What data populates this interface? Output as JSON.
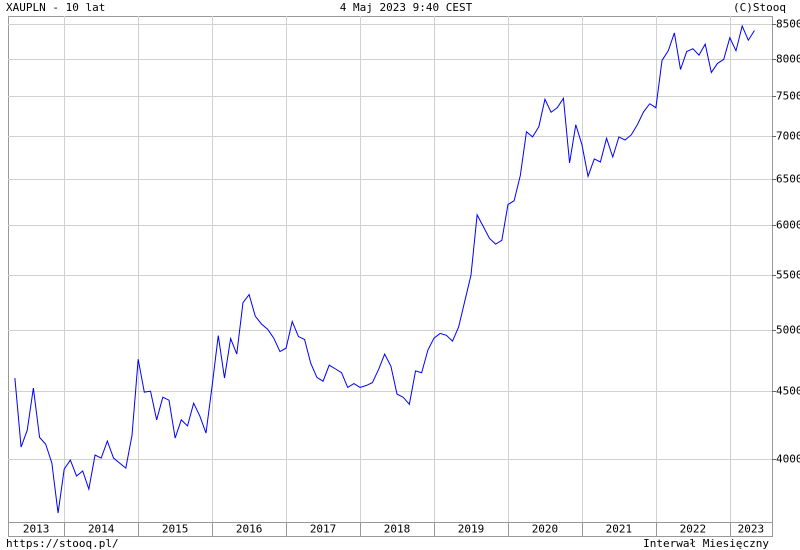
{
  "chart_data": {
    "type": "line",
    "title": "XAUPLN - 10 lat",
    "subtitle": "4 Maj 2023 9:40 CEST",
    "credit": "(C)Stooq",
    "source": "https://stooq.pl/",
    "interval": "Interwał Miesięczny",
    "color": "#0000ff",
    "log_scale": true,
    "grid": true,
    "xlim": [
      2013.24,
      2023.57
    ],
    "xticks": [
      {
        "value": 2013,
        "label": "2013"
      },
      {
        "value": 2014,
        "label": "2014"
      },
      {
        "value": 2015,
        "label": "2015"
      },
      {
        "value": 2016,
        "label": "2016"
      },
      {
        "value": 2017,
        "label": "2017"
      },
      {
        "value": 2018,
        "label": "2018"
      },
      {
        "value": 2019,
        "label": "2019"
      },
      {
        "value": 2020,
        "label": "2020"
      },
      {
        "value": 2021,
        "label": "2021"
      },
      {
        "value": 2022,
        "label": "2022"
      },
      {
        "value": 2023,
        "label": "2023"
      }
    ],
    "ylim": [
      3587,
      8614
    ],
    "yticks": [
      4000,
      4500,
      5000,
      5500,
      6000,
      6500,
      7000,
      7500,
      8000,
      8500
    ],
    "x": [
      2013.333,
      2013.417,
      2013.5,
      2013.583,
      2013.667,
      2013.75,
      2013.833,
      2013.917,
      2014.0,
      2014.083,
      2014.167,
      2014.25,
      2014.333,
      2014.417,
      2014.5,
      2014.583,
      2014.667,
      2014.75,
      2014.833,
      2014.917,
      2015.0,
      2015.083,
      2015.167,
      2015.25,
      2015.333,
      2015.417,
      2015.5,
      2015.583,
      2015.667,
      2015.75,
      2015.833,
      2015.917,
      2016.0,
      2016.083,
      2016.167,
      2016.25,
      2016.333,
      2016.417,
      2016.5,
      2016.583,
      2016.667,
      2016.75,
      2016.833,
      2016.917,
      2017.0,
      2017.083,
      2017.167,
      2017.25,
      2017.333,
      2017.417,
      2017.5,
      2017.583,
      2017.667,
      2017.75,
      2017.833,
      2017.917,
      2018.0,
      2018.083,
      2018.167,
      2018.25,
      2018.333,
      2018.417,
      2018.5,
      2018.583,
      2018.667,
      2018.75,
      2018.833,
      2018.917,
      2019.0,
      2019.083,
      2019.167,
      2019.25,
      2019.333,
      2019.417,
      2019.5,
      2019.583,
      2019.667,
      2019.75,
      2019.833,
      2019.917,
      2020.0,
      2020.083,
      2020.167,
      2020.25,
      2020.333,
      2020.417,
      2020.5,
      2020.583,
      2020.667,
      2020.75,
      2020.833,
      2020.917,
      2021.0,
      2021.083,
      2021.167,
      2021.25,
      2021.333,
      2021.417,
      2021.5,
      2021.583,
      2021.667,
      2021.75,
      2021.833,
      2021.917,
      2022.0,
      2022.083,
      2022.167,
      2022.25,
      2022.333,
      2022.417,
      2022.5,
      2022.583,
      2022.667,
      2022.75,
      2022.833,
      2022.917,
      2023.0,
      2023.083,
      2023.167,
      2023.25,
      2023.333
    ],
    "values": [
      4602,
      4084,
      4205,
      4523,
      4153,
      4104,
      3972,
      3643,
      3931,
      3993,
      3884,
      3918,
      3797,
      4028,
      4007,
      4126,
      4007,
      3972,
      3938,
      4169,
      4755,
      4491,
      4499,
      4281,
      4452,
      4429,
      4148,
      4281,
      4236,
      4406,
      4310,
      4184,
      4541,
      4954,
      4602,
      4928,
      4797,
      5244,
      5318,
      5123,
      5054,
      5008,
      4932,
      4818,
      4847,
      5075,
      4945,
      4920,
      4722,
      4607,
      4577,
      4706,
      4676,
      4645,
      4528,
      4558,
      4528,
      4543,
      4566,
      4670,
      4797,
      4698,
      4476,
      4452,
      4398,
      4660,
      4645,
      4830,
      4932,
      4972,
      4956,
      4906,
      5028,
      5260,
      5500,
      6105,
      5982,
      5862,
      5803,
      5842,
      6215,
      6255,
      6536,
      7049,
      6987,
      7111,
      7458,
      7292,
      7350,
      7470,
      6680,
      7136,
      6894,
      6526,
      6725,
      6690,
      6970,
      6748,
      6987,
      6950,
      7012,
      7137,
      7296,
      7400,
      7349,
      7976,
      8110,
      8365,
      7852,
      8100,
      8140,
      8050,
      8205,
      7812,
      7935,
      7990,
      8296,
      8110,
      8466,
      8260,
      8400
    ]
  }
}
